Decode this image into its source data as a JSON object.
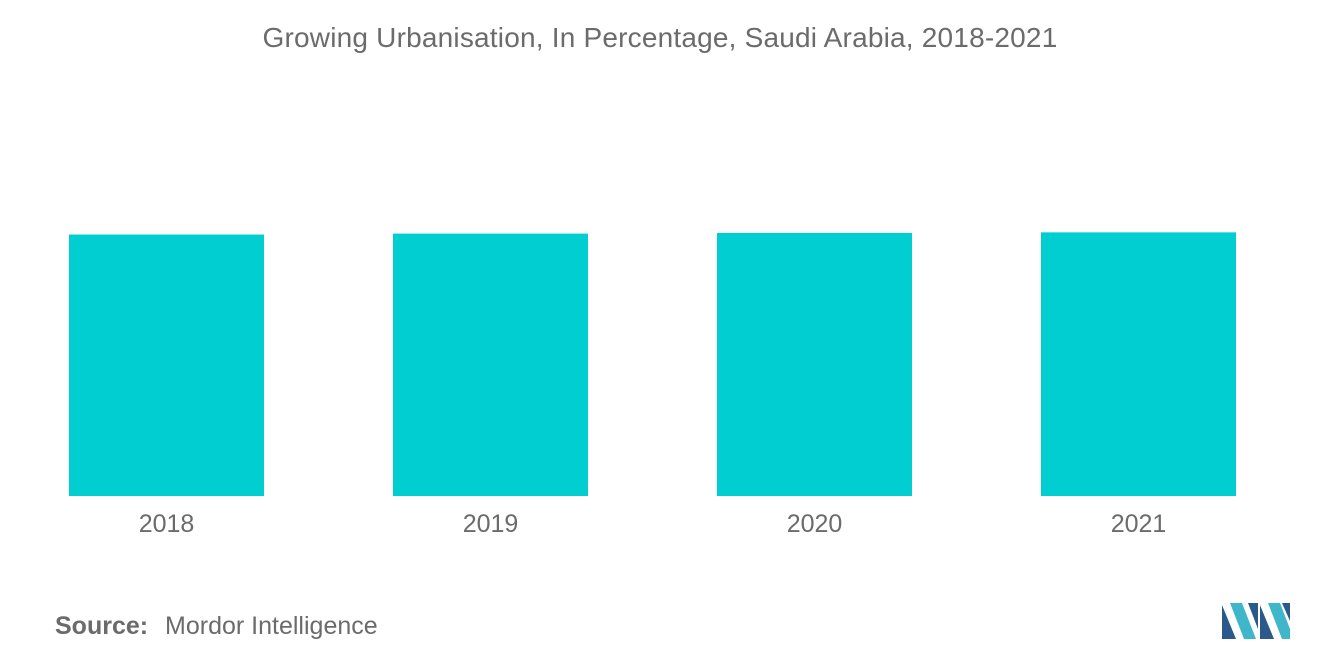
{
  "chart_data": {
    "type": "bar",
    "title": "Growing Urbanisation, In Percentage, Saudi Arabia, 2018-2021",
    "categories": [
      "2018",
      "2019",
      "2020",
      "2021"
    ],
    "values": [
      83.8,
      84.1,
      84.3,
      84.5
    ],
    "xlabel": "",
    "ylabel": "",
    "ylim": [
      0,
      100
    ],
    "grid": false,
    "legend": "none",
    "colors": {
      "bar": "#00ced1",
      "text": "#6b6b6b"
    }
  },
  "footer": {
    "source_label": "Source:",
    "source_value": "Mordor Intelligence"
  },
  "logo": {
    "icon": "mordor-intelligence-logo-icon",
    "colors": [
      "#2a5a8c",
      "#3fb6c9"
    ]
  }
}
